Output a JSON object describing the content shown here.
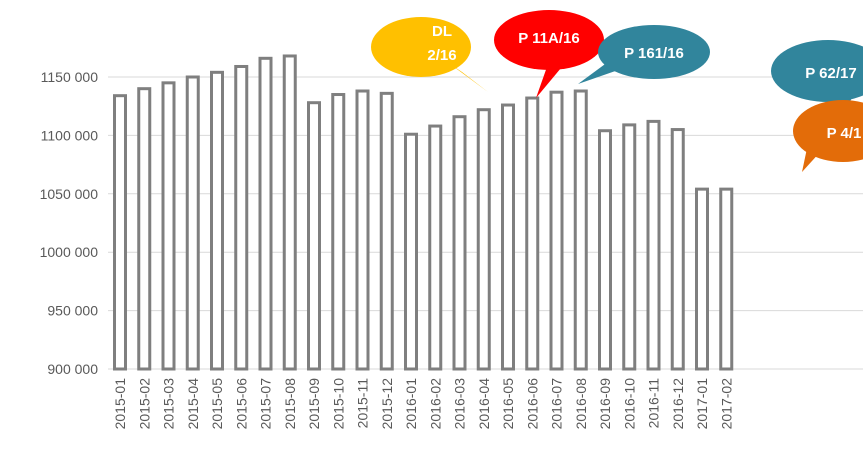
{
  "chart_data": {
    "type": "bar",
    "title": "",
    "xlabel": "",
    "ylabel": "",
    "ylim": [
      900000,
      1175000
    ],
    "y_ticks": [
      900000,
      950000,
      1000000,
      1050000,
      1100000,
      1150000
    ],
    "y_tick_labels": [
      "900 000",
      "950 000",
      "1000 000",
      "1050 000",
      "1100 000",
      "1150 000"
    ],
    "grid": "horizontal",
    "legend": "none",
    "bar_fill": "#ffffff",
    "bar_stroke": "#7f7f7f",
    "categories": [
      "2015-01",
      "2015-02",
      "2015-03",
      "2015-04",
      "2015-05",
      "2015-06",
      "2015-07",
      "2015-08",
      "2015-09",
      "2015-10",
      "2015-11",
      "2015-12",
      "2016-01",
      "2016-02",
      "2016-03",
      "2016-04",
      "2016-05",
      "2016-06",
      "2016-07",
      "2016-08",
      "2016-09",
      "2016-10",
      "2016-11",
      "2016-12",
      "2017-01",
      "2017-02"
    ],
    "values": [
      1134000,
      1140000,
      1145000,
      1150000,
      1154000,
      1159000,
      1166000,
      1168000,
      1128000,
      1135000,
      1138000,
      1136000,
      1101000,
      1108000,
      1116000,
      1122000,
      1126000,
      1132000,
      1137000,
      1138000,
      1104000,
      1109000,
      1112000,
      1105000,
      1054000,
      1054000
    ],
    "annotations": [
      {
        "id": "dl",
        "lines": [
          "DL",
          "2/16"
        ],
        "color": "#ffc000",
        "text_color": "#ffffff"
      },
      {
        "id": "p11a",
        "lines": [
          "P 11A/16"
        ],
        "color": "#ff0000",
        "text_color": "#ffffff"
      },
      {
        "id": "p161",
        "lines": [
          "P 161/16"
        ],
        "color": "#31859c",
        "text_color": "#ffffff"
      },
      {
        "id": "p62",
        "lines": [
          "P 62/17"
        ],
        "color": "#31859c",
        "text_color": "#ffffff"
      },
      {
        "id": "p4",
        "lines": [
          "P 4/1"
        ],
        "color": "#e36c09",
        "text_color": "#ffffff"
      }
    ]
  }
}
